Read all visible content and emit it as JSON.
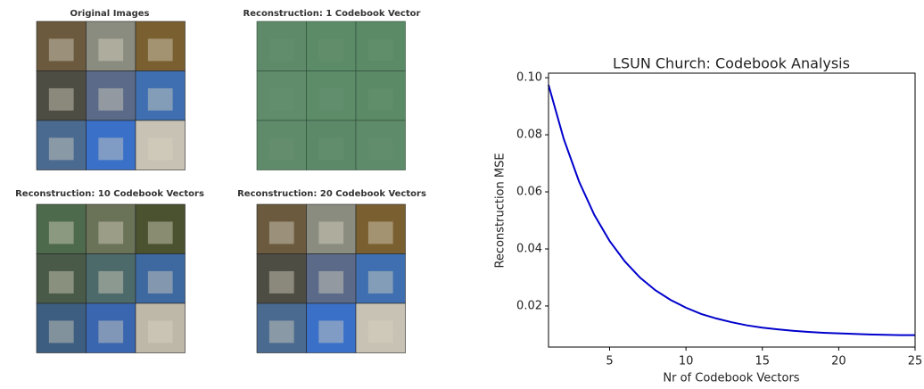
{
  "image_panels": [
    {
      "title": "Original Images"
    },
    {
      "title": "Reconstruction: 1 Codebook Vector"
    },
    {
      "title": "Reconstruction: 10 Codebook Vectors"
    },
    {
      "title": "Reconstruction: 20 Codebook Vectors"
    }
  ],
  "chart_data": {
    "type": "line",
    "title": "LSUN Church: Codebook Analysis",
    "x_label": "Nr of Codebook Vectors",
    "y_label": "Reconstruction MSE",
    "x": [
      1,
      2,
      3,
      4,
      5,
      6,
      7,
      8,
      9,
      10,
      11,
      12,
      13,
      14,
      15,
      16,
      17,
      18,
      19,
      20,
      21,
      22,
      23,
      24,
      25
    ],
    "series": [
      {
        "color": "#0000cc",
        "values": [
          0.0975,
          0.0785,
          0.0636,
          0.0519,
          0.0428,
          0.0356,
          0.0299,
          0.0255,
          0.0221,
          0.0194,
          0.0172,
          0.0156,
          0.0143,
          0.0132,
          0.0124,
          0.0118,
          0.0113,
          0.0109,
          0.0106,
          0.0104,
          0.0102,
          0.01,
          0.0099,
          0.0098,
          0.0098
        ]
      }
    ],
    "xlim": [
      1,
      25
    ],
    "ylim": [
      0.0056,
      0.1016
    ],
    "xticks": [
      5,
      10,
      15,
      20,
      25
    ],
    "yticks": [
      0.02,
      0.04,
      0.06,
      0.08,
      {
        "value": 0.1,
        "label": "0.10"
      }
    ]
  }
}
